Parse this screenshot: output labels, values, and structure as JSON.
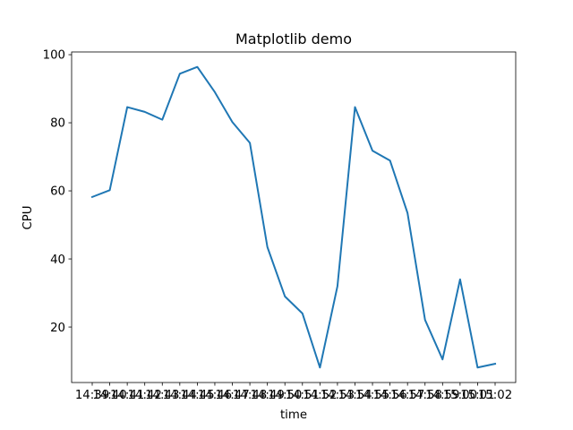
{
  "chart_data": {
    "type": "line",
    "title": "Matplotlib demo",
    "xlabel": "time",
    "ylabel": "CPU",
    "categories": [
      "14:39",
      "14:40",
      "14:41",
      "14:42",
      "14:43",
      "14:44",
      "14:45",
      "14:46",
      "14:47",
      "14:48",
      "14:49",
      "14:50",
      "14:51",
      "14:52",
      "14:53",
      "14:54",
      "14:55",
      "14:56",
      "14:57",
      "14:58",
      "14:59",
      "15:00",
      "15:01",
      "15:02"
    ],
    "x_tick_labels": [
      "14:39",
      "14:40",
      "14:41",
      "14:42",
      "14:43",
      "14:44",
      "14:45",
      "14:46",
      "14:47",
      "14:48",
      "14:49",
      "14:50",
      "14:51",
      "14:52",
      "14:53",
      "14:54",
      "14:55",
      "14:56",
      "14:57",
      "14:58",
      "14:59",
      "15:00",
      "15:01",
      "15:02"
    ],
    "series": [
      {
        "values": [
          58.2,
          60.2,
          84.6,
          83.2,
          80.9,
          94.4,
          96.4,
          89.0,
          80.2,
          74.1,
          43.5,
          29.0,
          24.0,
          8.1,
          32.0,
          84.6,
          71.8,
          68.9,
          53.5,
          22.1,
          10.5,
          34.0,
          8.1,
          9.2
        ],
        "color": "#1f77b4"
      }
    ],
    "yticks": [
      20,
      40,
      60,
      80,
      100
    ],
    "ylim": [
      3.7,
      100.8
    ],
    "grid": false,
    "legend": "none"
  }
}
